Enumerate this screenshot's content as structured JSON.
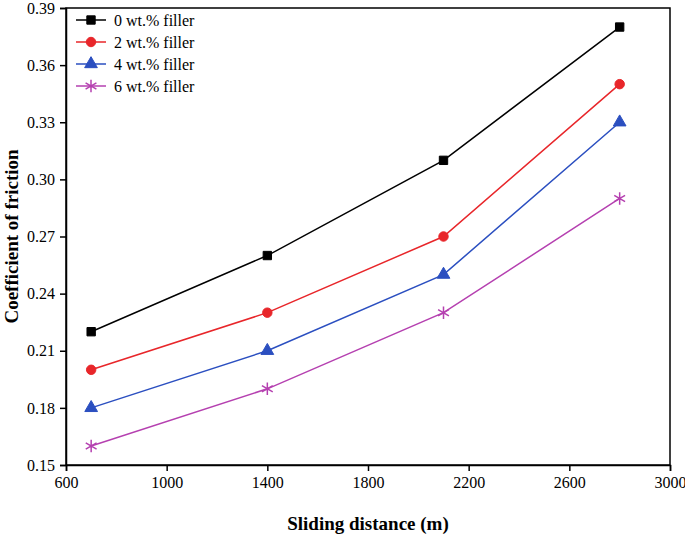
{
  "chart_data": {
    "type": "line",
    "x_label": "Sliding distance (m)",
    "y_label": "Coefficient of friction",
    "x": [
      700,
      1400,
      2100,
      2800
    ],
    "series": [
      {
        "name": "0 wt.% filler",
        "color": "#000000",
        "marker": "square",
        "line_style": "solid",
        "values": [
          0.22,
          0.26,
          0.31,
          0.38
        ]
      },
      {
        "name": "2 wt.% filler",
        "color": "#e8262a",
        "marker": "circle",
        "line_style": "solid",
        "values": [
          0.2,
          0.23,
          0.27,
          0.35
        ]
      },
      {
        "name": "4 wt.% filler",
        "color": "#2b4fc0",
        "marker": "triangle",
        "line_style": "solid",
        "values": [
          0.18,
          0.21,
          0.25,
          0.33
        ]
      },
      {
        "name": "6 wt.% filler",
        "color": "#b540b0",
        "marker": "asterisk",
        "line_style": "solid",
        "values": [
          0.16,
          0.19,
          0.23,
          0.29
        ]
      }
    ],
    "xlim": [
      600,
      3000
    ],
    "xticks": [
      600,
      1000,
      1400,
      1800,
      2200,
      2600,
      3000
    ],
    "ylim": [
      0.15,
      0.39
    ],
    "yticks": [
      0.15,
      0.18,
      0.21,
      0.24,
      0.27,
      {
        "value": 0.3,
        "label": "0.30"
      },
      0.33,
      0.36,
      0.39
    ],
    "legend": "top-left",
    "grid": false
  }
}
